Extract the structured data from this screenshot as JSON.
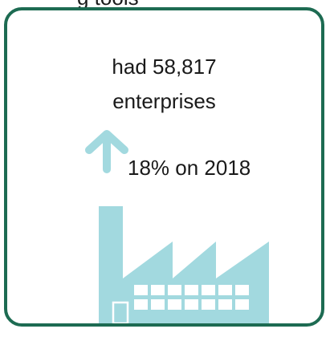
{
  "top_cut_text": "g tools",
  "card": {
    "line1": "had 58,817",
    "line2": "enterprises",
    "change": "18% on 2018"
  },
  "icons": {
    "arrow": "up-arrow-icon",
    "building": "factory-icon"
  },
  "colors": {
    "border": "#1d6b52",
    "icon": "#a2d9df"
  }
}
